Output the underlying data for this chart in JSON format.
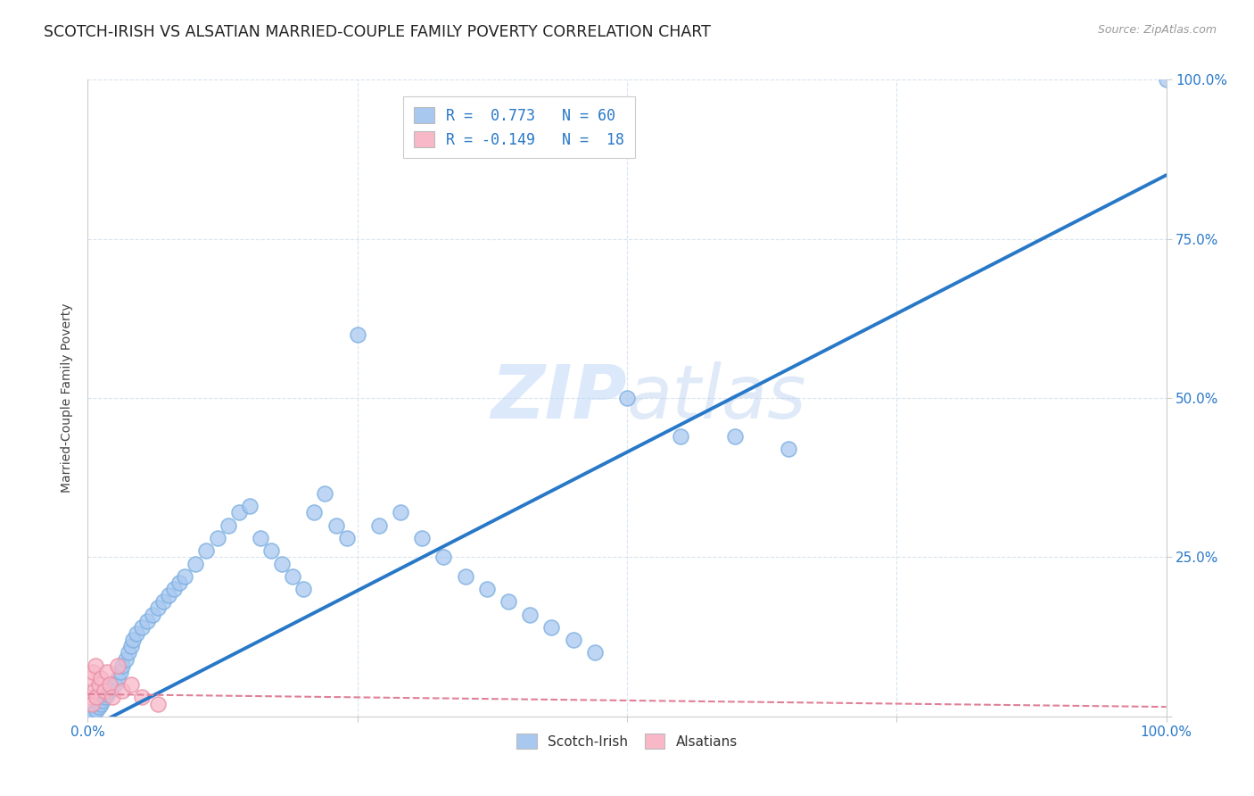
{
  "title": "SCOTCH-IRISH VS ALSATIAN MARRIED-COUPLE FAMILY POVERTY CORRELATION CHART",
  "source": "Source: ZipAtlas.com",
  "ylabel": "Married-Couple Family Poverty",
  "watermark_zip": "ZIP",
  "watermark_atlas": "atlas",
  "scotch_irish_R": "0.773",
  "scotch_irish_N": "60",
  "alsatian_R": "-0.149",
  "alsatian_N": "18",
  "scotch_irish_color": "#a8c8f0",
  "scotch_irish_edge_color": "#7aaee0",
  "scotch_irish_line_color": "#2878c8",
  "alsatian_color": "#f8b8c8",
  "alsatian_edge_color": "#e890a8",
  "alsatian_line_color": "#e08098",
  "scotch_irish_x": [
    0.3,
    0.5,
    0.8,
    1.0,
    1.2,
    1.4,
    1.6,
    1.8,
    2.0,
    2.2,
    2.5,
    2.8,
    3.0,
    3.2,
    3.5,
    3.8,
    4.0,
    4.2,
    4.5,
    5.0,
    5.5,
    6.0,
    6.5,
    7.0,
    7.5,
    8.0,
    8.5,
    9.0,
    10.0,
    11.0,
    12.0,
    13.0,
    14.0,
    15.0,
    16.0,
    17.0,
    18.0,
    19.0,
    20.0,
    21.0,
    22.0,
    23.0,
    24.0,
    25.0,
    27.0,
    29.0,
    31.0,
    33.0,
    35.0,
    37.0,
    39.0,
    41.0,
    43.0,
    45.0,
    47.0,
    50.0,
    55.0,
    60.0,
    65.0,
    100.0
  ],
  "scotch_irish_y": [
    0.3,
    0.5,
    1.0,
    1.5,
    2.0,
    2.5,
    3.0,
    3.5,
    4.0,
    4.5,
    5.0,
    6.0,
    7.0,
    8.0,
    9.0,
    10.0,
    11.0,
    12.0,
    13.0,
    14.0,
    15.0,
    16.0,
    17.0,
    18.0,
    19.0,
    20.0,
    21.0,
    22.0,
    24.0,
    26.0,
    28.0,
    30.0,
    32.0,
    33.0,
    28.0,
    26.0,
    24.0,
    22.0,
    20.0,
    32.0,
    35.0,
    30.0,
    28.0,
    60.0,
    30.0,
    32.0,
    28.0,
    25.0,
    22.0,
    20.0,
    18.0,
    16.0,
    14.0,
    12.0,
    10.0,
    50.0,
    44.0,
    44.0,
    42.0,
    100.0
  ],
  "alsatian_x": [
    0.2,
    0.3,
    0.4,
    0.5,
    0.6,
    0.7,
    0.8,
    1.0,
    1.2,
    1.5,
    1.8,
    2.0,
    2.3,
    2.8,
    3.2,
    4.0,
    5.0,
    6.5
  ],
  "alsatian_y": [
    3.0,
    6.0,
    2.0,
    7.0,
    4.0,
    8.0,
    3.0,
    5.0,
    6.0,
    4.0,
    7.0,
    5.0,
    3.0,
    8.0,
    4.0,
    5.0,
    3.0,
    2.0
  ],
  "xlim": [
    0,
    100
  ],
  "ylim": [
    0,
    100
  ],
  "background_color": "#ffffff",
  "grid_color": "#d8e4f0"
}
